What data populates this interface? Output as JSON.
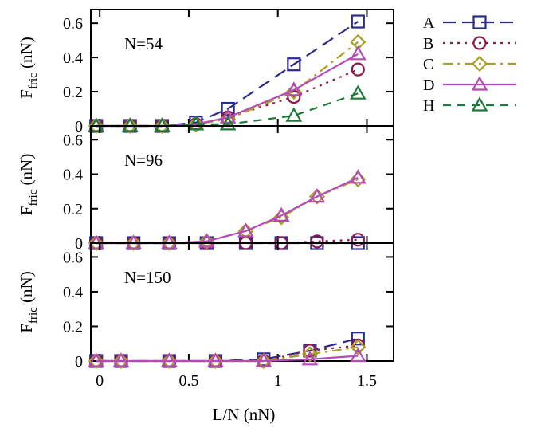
{
  "chart_data": {
    "type": "line",
    "xlabel": "L/N (nN)",
    "x_ticks": [
      "0",
      "0.5",
      "1",
      "1.5"
    ],
    "xlim": [
      -0.05,
      1.65
    ],
    "legend_placement": "right",
    "series_styles": [
      {
        "name": "A",
        "color": "#2b2b8c",
        "marker": "square",
        "dash": "long-dash"
      },
      {
        "name": "B",
        "color": "#8b1a4a",
        "marker": "circle",
        "dash": "dotted"
      },
      {
        "name": "C",
        "color": "#a7a11f",
        "marker": "diamond",
        "dash": "dash-dot"
      },
      {
        "name": "D",
        "color": "#b54ab8",
        "marker": "triangle",
        "dash": "solid"
      },
      {
        "name": "H",
        "color": "#1f7a3a",
        "marker": "triangle",
        "dash": "dashed"
      }
    ],
    "panels": [
      {
        "label": "N=54",
        "ylabel_main": "F",
        "ylabel_sub": "fric",
        "ylabel_unit": " (nN)",
        "ylim": [
          0,
          0.68
        ],
        "y_ticks": [
          0,
          0.2,
          0.4,
          0.6
        ],
        "y_tick_labels": [
          "0",
          "0.2",
          "0.4",
          "0.6"
        ],
        "series": [
          {
            "name": "A",
            "x": [
              -0.02,
              0.17,
              0.35,
              0.54,
              0.72,
              1.09,
              1.45
            ],
            "y": [
              0,
              0,
              0,
              0.02,
              0.1,
              0.36,
              0.61
            ]
          },
          {
            "name": "B",
            "x": [
              -0.02,
              0.17,
              0.35,
              0.54,
              0.72,
              1.09,
              1.45
            ],
            "y": [
              0,
              0,
              0,
              0.01,
              0.05,
              0.17,
              0.33
            ]
          },
          {
            "name": "C",
            "x": [
              -0.02,
              0.17,
              0.35,
              0.54,
              0.72,
              1.09,
              1.45
            ],
            "y": [
              0,
              0,
              0,
              0.01,
              0.04,
              0.2,
              0.49
            ]
          },
          {
            "name": "D",
            "x": [
              -0.02,
              0.17,
              0.35,
              0.54,
              0.72,
              1.09,
              1.45
            ],
            "y": [
              0,
              0,
              0,
              0.01,
              0.05,
              0.21,
              0.42
            ]
          },
          {
            "name": "H",
            "x": [
              -0.02,
              0.17,
              0.35,
              0.54,
              0.72,
              1.09,
              1.45
            ],
            "y": [
              0,
              0,
              0,
              0.01,
              0.01,
              0.06,
              0.19
            ]
          }
        ]
      },
      {
        "label": "N=96",
        "ylabel_main": "F",
        "ylabel_sub": "fric",
        "ylabel_unit": " (nN)",
        "ylim": [
          0,
          0.68
        ],
        "y_ticks": [
          0,
          0.2,
          0.4,
          0.6
        ],
        "y_tick_labels": [
          "0",
          "0.2",
          "0.4",
          "0.6"
        ],
        "series": [
          {
            "name": "A",
            "x": [
              -0.02,
              0.19,
              0.39,
              0.6,
              0.82,
              1.02,
              1.22,
              1.45
            ],
            "y": [
              0,
              0,
              0,
              0,
              0,
              0,
              0,
              0
            ]
          },
          {
            "name": "B",
            "x": [
              -0.02,
              0.19,
              0.39,
              0.6,
              0.82,
              1.02,
              1.22,
              1.45
            ],
            "y": [
              0,
              0,
              0,
              0,
              0,
              0,
              0.01,
              0.02
            ]
          },
          {
            "name": "C",
            "x": [
              -0.02,
              0.19,
              0.39,
              0.6,
              0.82,
              1.02,
              1.22,
              1.45
            ],
            "y": [
              0,
              0,
              0,
              0.01,
              0.07,
              0.15,
              0.27,
              0.37
            ]
          },
          {
            "name": "D",
            "x": [
              -0.02,
              0.19,
              0.39,
              0.6,
              0.82,
              1.02,
              1.22,
              1.45
            ],
            "y": [
              0,
              0,
              0,
              0.01,
              0.07,
              0.16,
              0.27,
              0.38
            ]
          }
        ]
      },
      {
        "label": "N=150",
        "ylabel_main": "F",
        "ylabel_sub": "fric",
        "ylabel_unit": " (nN)",
        "ylim": [
          0,
          0.68
        ],
        "y_ticks": [
          0,
          0.2,
          0.4,
          0.6
        ],
        "y_tick_labels": [
          "0",
          "0.2",
          "0.4",
          "0.6"
        ],
        "series": [
          {
            "name": "A",
            "x": [
              -0.02,
              0.12,
              0.39,
              0.65,
              0.92,
              1.18,
              1.45
            ],
            "y": [
              0,
              0,
              0,
              0,
              0.01,
              0.06,
              0.13
            ]
          },
          {
            "name": "B",
            "x": [
              -0.02,
              0.12,
              0.39,
              0.65,
              0.92,
              1.18,
              1.45
            ],
            "y": [
              0,
              0,
              0,
              0,
              0,
              0.06,
              0.09
            ]
          },
          {
            "name": "C",
            "x": [
              -0.02,
              0.12,
              0.39,
              0.65,
              0.92,
              1.18,
              1.45
            ],
            "y": [
              0,
              0,
              0,
              0,
              0,
              0.04,
              0.08
            ]
          },
          {
            "name": "D",
            "x": [
              -0.02,
              0.12,
              0.39,
              0.65,
              0.92,
              1.18,
              1.45
            ],
            "y": [
              0,
              0,
              0,
              0,
              0,
              0.01,
              0.03
            ]
          }
        ]
      }
    ]
  }
}
